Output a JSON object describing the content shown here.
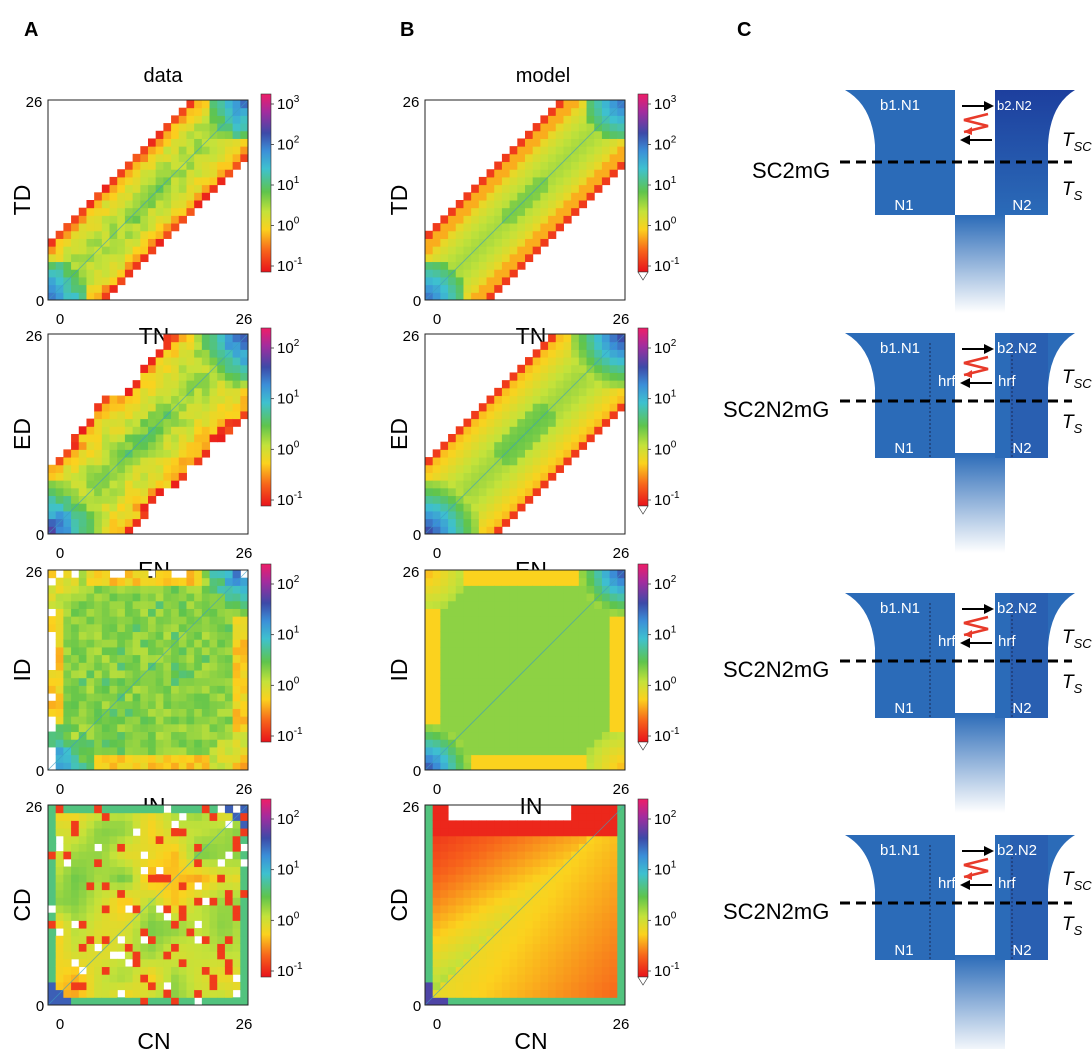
{
  "panel_letters": [
    "A",
    "B",
    "C"
  ],
  "column_titles": {
    "data": "data",
    "model": "model"
  },
  "colorbar_labels": {
    "e3": "3",
    "e2": "2",
    "e1": "1",
    "e0": "0",
    "em1": "-1",
    "base": "10"
  },
  "chart_data": [
    {
      "type": "heatmap",
      "column": "data",
      "xlabel": "TN",
      "ylabel": "TD",
      "xlim": [
        0,
        26
      ],
      "ylim": [
        0,
        26
      ],
      "x_tick_labels": [
        "0",
        "26"
      ],
      "y_tick_labels": [
        "0",
        "26"
      ],
      "colorbar": [
        "10^-1",
        "10^0",
        "10^1",
        "10^2",
        "10^3"
      ]
    },
    {
      "type": "heatmap",
      "column": "model",
      "xlabel": "TN",
      "ylabel": "TD",
      "xlim": [
        0,
        26
      ],
      "ylim": [
        0,
        26
      ],
      "x_tick_labels": [
        "0",
        "26"
      ],
      "y_tick_labels": [
        "0",
        "26"
      ],
      "colorbar": [
        "10^-1",
        "10^0",
        "10^1",
        "10^2",
        "10^3"
      ]
    },
    {
      "type": "heatmap",
      "column": "data",
      "xlabel": "EN",
      "ylabel": "ED",
      "xlim": [
        0,
        26
      ],
      "ylim": [
        0,
        26
      ],
      "x_tick_labels": [
        "0",
        "26"
      ],
      "y_tick_labels": [
        "0",
        "26"
      ],
      "colorbar": [
        "10^-1",
        "10^0",
        "10^1",
        "10^2"
      ]
    },
    {
      "type": "heatmap",
      "column": "model",
      "xlabel": "EN",
      "ylabel": "ED",
      "xlim": [
        0,
        26
      ],
      "ylim": [
        0,
        26
      ],
      "x_tick_labels": [
        "0",
        "26"
      ],
      "y_tick_labels": [
        "0",
        "26"
      ],
      "colorbar": [
        "10^-1",
        "10^0",
        "10^1",
        "10^2"
      ]
    },
    {
      "type": "heatmap",
      "column": "data",
      "xlabel": "IN",
      "ylabel": "ID",
      "xlim": [
        0,
        26
      ],
      "ylim": [
        0,
        26
      ],
      "x_tick_labels": [
        "0",
        "26"
      ],
      "y_tick_labels": [
        "0",
        "26"
      ],
      "colorbar": [
        "10^-1",
        "10^0",
        "10^1",
        "10^2"
      ]
    },
    {
      "type": "heatmap",
      "column": "model",
      "xlabel": "IN",
      "ylabel": "ID",
      "xlim": [
        0,
        26
      ],
      "ylim": [
        0,
        26
      ],
      "x_tick_labels": [
        "0",
        "26"
      ],
      "y_tick_labels": [
        "0",
        "26"
      ],
      "colorbar": [
        "10^-1",
        "10^0",
        "10^1",
        "10^2"
      ]
    },
    {
      "type": "heatmap",
      "column": "data",
      "xlabel": "CN",
      "ylabel": "CD",
      "xlim": [
        0,
        26
      ],
      "ylim": [
        0,
        26
      ],
      "x_tick_labels": [
        "0",
        "26"
      ],
      "y_tick_labels": [
        "0",
        "26"
      ],
      "colorbar": [
        "10^-1",
        "10^0",
        "10^1",
        "10^2"
      ]
    },
    {
      "type": "heatmap",
      "column": "model",
      "xlabel": "CN",
      "ylabel": "CD",
      "xlim": [
        0,
        26
      ],
      "ylim": [
        0,
        26
      ],
      "x_tick_labels": [
        "0",
        "26"
      ],
      "y_tick_labels": [
        "0",
        "26"
      ],
      "colorbar": [
        "10^-1",
        "10^0",
        "10^1",
        "10^2"
      ]
    }
  ],
  "diagrams": [
    {
      "model": "SC2mG",
      "left_top": "b1.N1",
      "right_top": "b2.N2",
      "left_bottom": "N1",
      "right_bottom": "N2",
      "upper_period": "T",
      "upper_period_sub": "SC",
      "lower_period": "T",
      "lower_period_sub": "S",
      "hrf": false
    },
    {
      "model": "SC2N2mG",
      "left_top": "b1.N1",
      "right_top": "b2.N2",
      "left_bottom": "N1",
      "right_bottom": "N2",
      "upper_period": "T",
      "upper_period_sub": "SC",
      "lower_period": "T",
      "lower_period_sub": "S",
      "hrf": true,
      "hrf_label": "hrf"
    },
    {
      "model": "SC2N2mG",
      "left_top": "b1.N1",
      "right_top": "b2.N2",
      "left_bottom": "N1",
      "right_bottom": "N2",
      "upper_period": "T",
      "upper_period_sub": "SC",
      "lower_period": "T",
      "lower_period_sub": "S",
      "hrf": true,
      "hrf_label": "hrf"
    },
    {
      "model": "SC2N2mG",
      "left_top": "b1.N1",
      "right_top": "b2.N2",
      "left_bottom": "N1",
      "right_bottom": "N2",
      "upper_period": "T",
      "upper_period_sub": "SC",
      "lower_period": "T",
      "lower_period_sub": "S",
      "hrf": true,
      "hrf_label": "hrf"
    }
  ]
}
